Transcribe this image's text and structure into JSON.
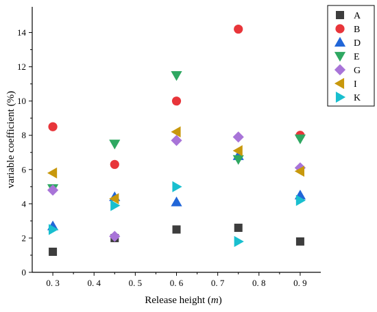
{
  "chart_data": {
    "type": "scatter",
    "title": "",
    "xlabel_main": "Release height (",
    "xlabel_unit": "m",
    "xlabel_close": ")",
    "ylabel": "variable coefficient (%)",
    "xlim": [
      0.25,
      0.95
    ],
    "ylim": [
      0,
      15.5
    ],
    "x_ticks": [
      0.3,
      0.4,
      0.5,
      0.6,
      0.7,
      0.8,
      0.9
    ],
    "x_tick_labels": [
      "0. 3",
      "0. 4",
      "0. 5",
      "0. 6",
      "0. 7",
      "0. 8",
      "0. 9"
    ],
    "y_ticks": [
      0,
      2,
      4,
      6,
      8,
      10,
      12,
      14
    ],
    "y_tick_labels": [
      "0",
      "2",
      "4",
      "6",
      "8",
      "10",
      "12",
      "14"
    ],
    "grid": false,
    "legend_position": "outside-top-right",
    "series": [
      {
        "name": "A",
        "marker": "square",
        "color": "#3d3d3d",
        "x": [
          0.3,
          0.45,
          0.6,
          0.75,
          0.9
        ],
        "y": [
          1.2,
          2.0,
          2.5,
          2.6,
          1.8
        ]
      },
      {
        "name": "B",
        "marker": "circle",
        "color": "#e8353a",
        "x": [
          0.3,
          0.45,
          0.6,
          0.75,
          0.9
        ],
        "y": [
          8.5,
          6.3,
          10.0,
          14.2,
          8.0
        ]
      },
      {
        "name": "D",
        "marker": "triangle-up",
        "color": "#2166d8",
        "x": [
          0.3,
          0.45,
          0.6,
          0.75,
          0.9
        ],
        "y": [
          2.7,
          4.4,
          4.1,
          6.8,
          4.5
        ]
      },
      {
        "name": "E",
        "marker": "triangle-down",
        "color": "#2fa862",
        "x": [
          0.3,
          0.45,
          0.6,
          0.75,
          0.9
        ],
        "y": [
          4.9,
          7.5,
          11.5,
          6.6,
          7.8
        ]
      },
      {
        "name": "G",
        "marker": "diamond",
        "color": "#a874d8",
        "x": [
          0.3,
          0.45,
          0.6,
          0.75,
          0.9
        ],
        "y": [
          4.8,
          2.1,
          7.7,
          7.9,
          6.1
        ]
      },
      {
        "name": "I",
        "marker": "triangle-left",
        "color": "#c8980c",
        "x": [
          0.3,
          0.45,
          0.6,
          0.75,
          0.9
        ],
        "y": [
          5.8,
          4.3,
          8.2,
          7.1,
          5.9
        ]
      },
      {
        "name": "K",
        "marker": "triangle-right",
        "color": "#19bfcf",
        "x": [
          0.3,
          0.45,
          0.6,
          0.75,
          0.9
        ],
        "y": [
          2.5,
          3.9,
          5.0,
          1.8,
          4.2
        ]
      }
    ]
  }
}
